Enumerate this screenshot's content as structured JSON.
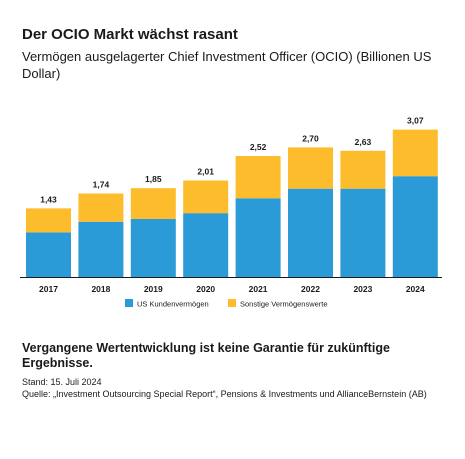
{
  "title": "Der OCIO Markt wächst rasant",
  "subtitle": "Vermögen ausgelagerter Chief Investment Officer (OCIO) (Billionen US Dollar)",
  "footer": {
    "disclaimer": "Vergangene Wertentwicklung ist keine Garantie für zukünftige Ergebnisse.",
    "stand": "Stand: 15. Juli 2024",
    "source": "Quelle: „Investment Outsourcing Special Report“, Pensions & Investments und AllianceBernstein (AB)"
  },
  "colors": {
    "us": "#2a9bd7",
    "other": "#fdbc2c"
  },
  "chart_data": {
    "type": "bar",
    "stacked": true,
    "categories": [
      "2017",
      "2018",
      "2019",
      "2020",
      "2021",
      "2022",
      "2023",
      "2024"
    ],
    "series": [
      {
        "name": "US Kundenvermögen",
        "values": [
          0.93,
          1.15,
          1.21,
          1.33,
          1.64,
          1.84,
          1.84,
          2.1
        ]
      },
      {
        "name": "Sonstige Vermögenswerte",
        "values": [
          0.5,
          0.59,
          0.64,
          0.68,
          0.88,
          0.86,
          0.79,
          0.97
        ]
      }
    ],
    "totals": [
      "1,43",
      "1,74",
      "1,85",
      "2,01",
      "2,52",
      "2,70",
      "2,63",
      "3,07"
    ],
    "ylim": [
      0,
      3.3
    ],
    "legend": "bottom-center"
  }
}
